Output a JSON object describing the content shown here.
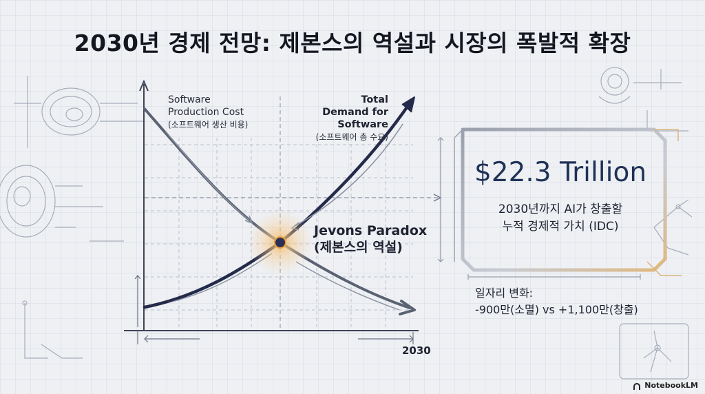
{
  "title": "2030년 경제 전망: 제본스의 역설과 시장의 폭발적 확장",
  "curves": {
    "cost": {
      "label_en": "Software Production Cost",
      "label_ko": "(소프트웨어 생산 비용)",
      "color": "#5a6272"
    },
    "demand": {
      "label_en": "Total Demand for Software",
      "label_ko": "(소프트웨어 총 수요)",
      "color": "#242a4a"
    }
  },
  "intersection": {
    "label_en": "Jevons Paradox",
    "label_ko": "(제본스의 역설)",
    "glow_color": "#f5b860"
  },
  "x_axis": {
    "tick_label": "2030"
  },
  "stat": {
    "value": "$22.3 Trillion",
    "line1": "2030년까지 AI가 창출할",
    "line2": "누적 경제적 가치 (IDC)",
    "frame_accent": "#d9b27a"
  },
  "jobs": {
    "heading": "일자리 변화:",
    "detail": "-900만(소멸) vs +1,100만(창출)"
  },
  "brand": {
    "name": "NotebookLM"
  }
}
